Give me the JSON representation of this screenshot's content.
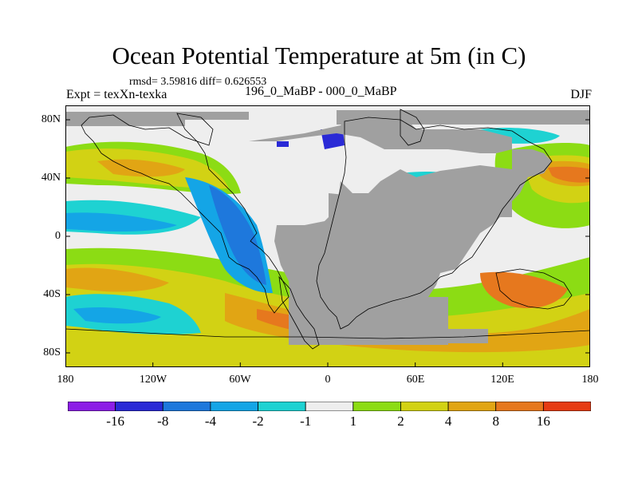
{
  "title": "Ocean Potential Temperature at 5m (in C)",
  "stats": "rmsd= 3.59816 diff= 0.626553",
  "expt": "Expt = texXn-texka",
  "experiment_names": "196_0_MaBP - 000_0_MaBP",
  "season": "DJF",
  "lat_labels": [
    "80N",
    "40N",
    "0",
    "40S",
    "80S"
  ],
  "lon_labels": [
    "180",
    "120W",
    "60W",
    "0",
    "60E",
    "120E",
    "180"
  ],
  "colorbar": {
    "labels": [
      "-16",
      "-8",
      "-4",
      "-2",
      "-1",
      "1",
      "2",
      "4",
      "8",
      "16"
    ],
    "colors": [
      "#8c1ee6",
      "#2a2ad6",
      "#1e78dc",
      "#14a5e6",
      "#1ed2d2",
      "#eeeeee",
      "#8cdc14",
      "#d2d214",
      "#e1a514",
      "#e6781e",
      "#e63c14"
    ]
  },
  "land_color": "#a0a0a0"
}
